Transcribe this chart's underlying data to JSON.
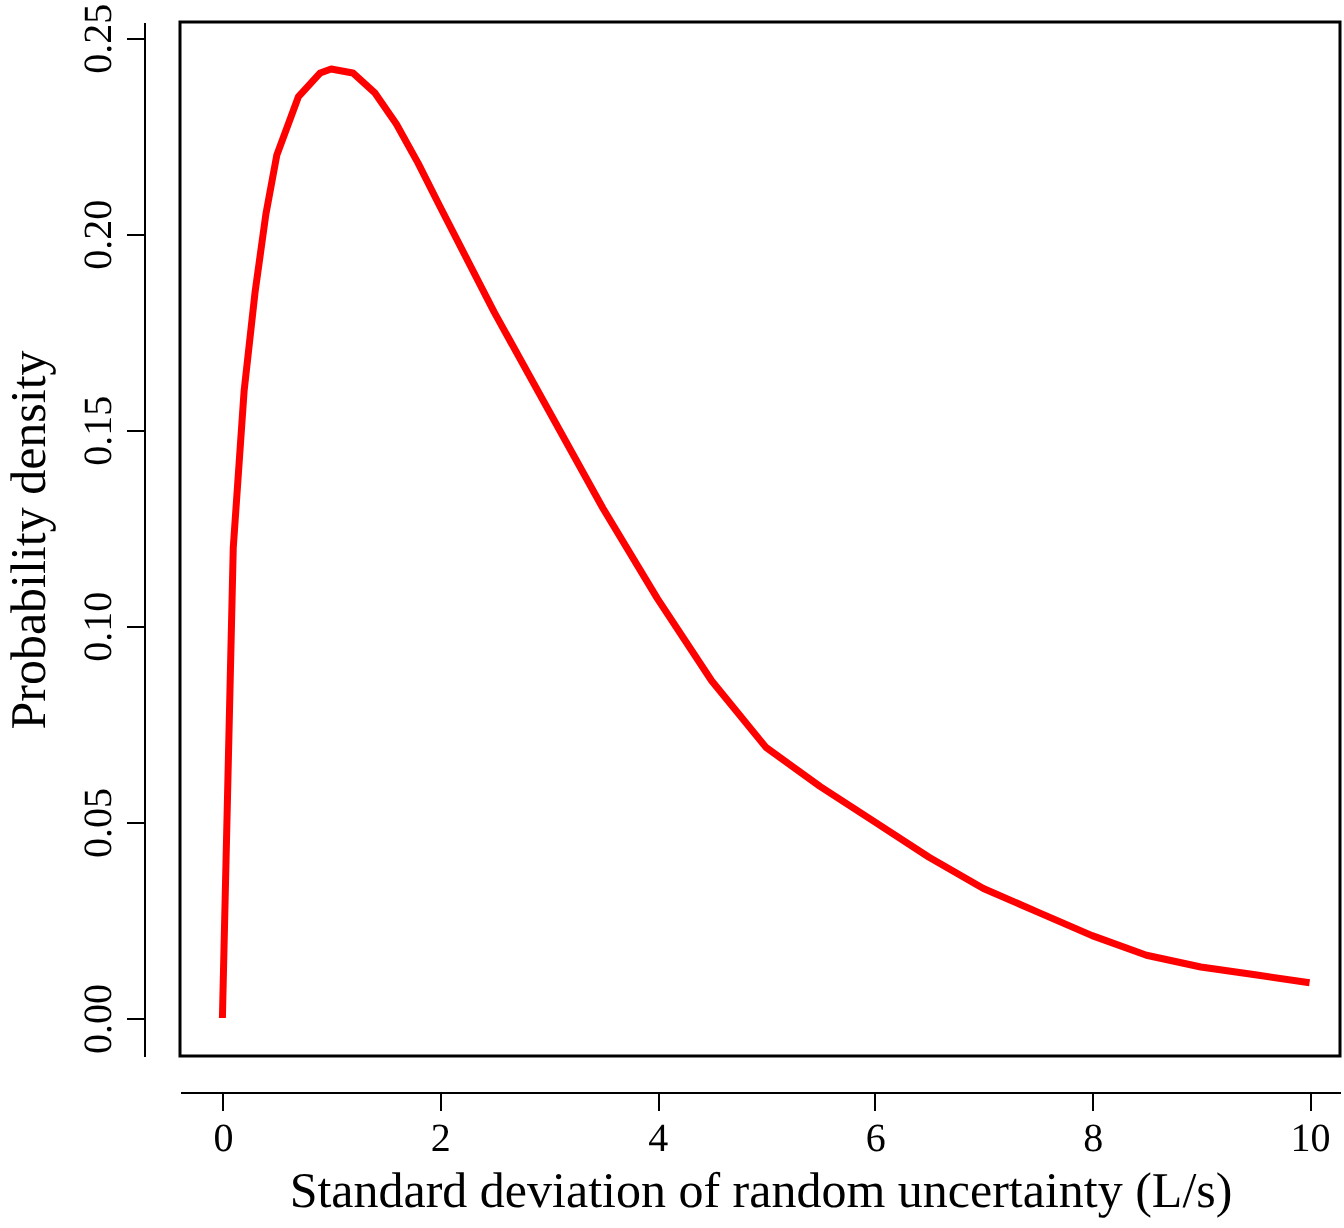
{
  "chart_data": {
    "type": "line",
    "xlabel": "Standard deviation of random uncertainty (L/s)",
    "ylabel": "Probability density",
    "x": [
      0,
      0.05,
      0.1,
      0.2,
      0.3,
      0.4,
      0.5,
      0.7,
      0.9,
      1.0,
      1.2,
      1.4,
      1.6,
      1.8,
      2.0,
      2.5,
      3,
      3.5,
      4,
      4.5,
      5,
      5.5,
      6,
      6.5,
      7,
      7.5,
      8,
      8.5,
      9,
      9.5,
      10
    ],
    "series": [
      {
        "color": "#ff0000",
        "values": [
          0,
          0.06,
          0.12,
          0.16,
          0.185,
          0.205,
          0.22,
          0.235,
          0.241,
          0.242,
          0.241,
          0.236,
          0.228,
          0.218,
          0.207,
          0.18,
          0.155,
          0.13,
          0.107,
          0.086,
          0.069,
          0.059,
          0.05,
          0.041,
          0.033,
          0.027,
          0.021,
          0.016,
          0.013,
          0.011,
          0.009
        ]
      }
    ],
    "xlim": [
      -0.39,
      10.28
    ],
    "ylim": [
      -0.0097,
      0.254
    ],
    "xticks": [
      0,
      2,
      4,
      6,
      8,
      10
    ],
    "yticks": [
      {
        "value": 0,
        "label": "0.00"
      },
      0.05,
      {
        "value": 0.1,
        "label": "0.10"
      },
      0.15,
      {
        "value": 0.2,
        "label": "0.20"
      },
      0.25
    ],
    "grid": false,
    "marker": "none",
    "line_style": "solid"
  }
}
